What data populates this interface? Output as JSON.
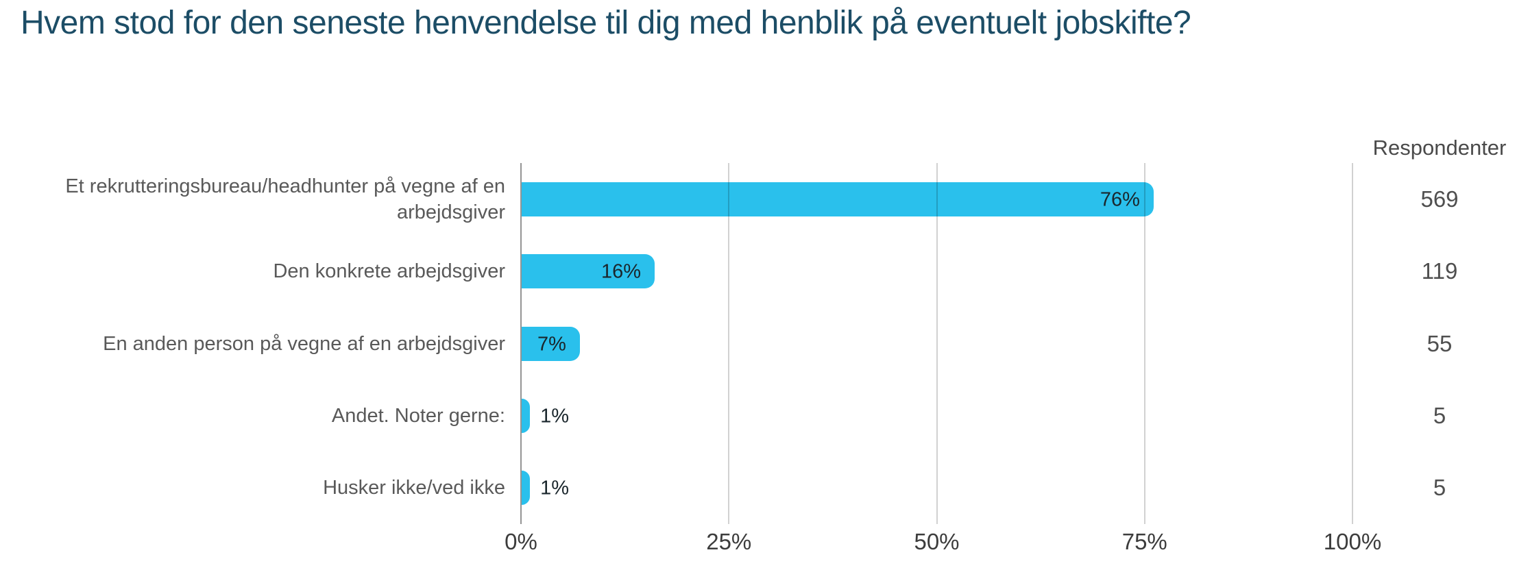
{
  "chart_data": {
    "type": "bar",
    "orientation": "horizontal",
    "title": "Hvem stod for den seneste henvendelse til dig med henblik på eventuelt jobskifte?",
    "categories": [
      "Et rekrutteringsbureau/headhunter på vegne af en arbejdsgiver",
      "Den konkrete arbejdsgiver",
      "En anden person på vegne af en arbejdsgiver",
      "Andet. Noter gerne:",
      "Husker ikke/ved ikke"
    ],
    "values": [
      76,
      16,
      7,
      1,
      1
    ],
    "value_labels": [
      "76%",
      "16%",
      "7%",
      "1%",
      "1%"
    ],
    "respondents_header": "Respondenter",
    "respondents": [
      569,
      119,
      55,
      5,
      5
    ],
    "x_tick_labels": [
      "0%",
      "25%",
      "50%",
      "75%",
      "100%"
    ],
    "xlim": [
      0,
      100
    ],
    "xlabel": "",
    "ylabel": "",
    "grid": true,
    "legend": "none",
    "bar_color": "#2AC0EC",
    "title_color": "#1C4D66"
  }
}
